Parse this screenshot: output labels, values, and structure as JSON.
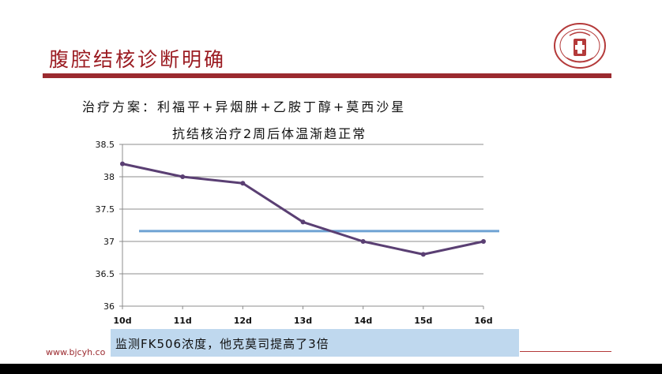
{
  "slide": {
    "title": "腹腔结核诊断明确",
    "subtitle": "治疗方案：利福平+异烟肼+乙胺丁醇+莫西沙星",
    "footer_url": "www.bjcyh.co",
    "note": "监测FK506浓度，他克莫司提高了3倍"
  },
  "colors": {
    "brand": "#9b2a2f",
    "series_line": "#5a3f73",
    "reference_line": "#6ea2d3",
    "note_bg": "#bfd8ee"
  },
  "chart_data": {
    "type": "line",
    "title": "抗结核治疗2周后体温渐趋正常",
    "xlabel": "",
    "ylabel": "",
    "categories": [
      "10d",
      "11d",
      "12d",
      "13d",
      "14d",
      "15d",
      "16d"
    ],
    "series": [
      {
        "values": [
          38.2,
          38.0,
          37.9,
          37.3,
          37.0,
          36.8,
          37.0
        ]
      }
    ],
    "reference_line": 37.16,
    "ylim": [
      36,
      38.5
    ],
    "yticks": [
      "36",
      "36.5",
      "37",
      "37.5",
      "38",
      "38.5"
    ],
    "grid": true
  }
}
